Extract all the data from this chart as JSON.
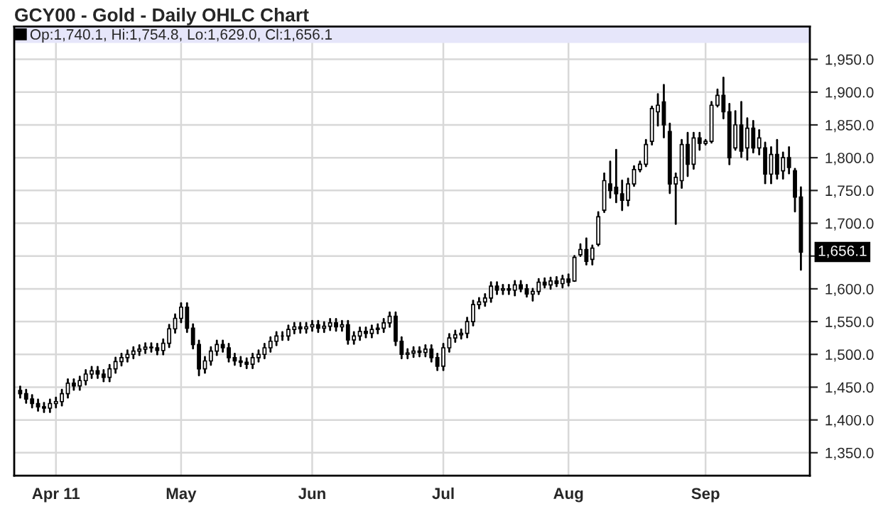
{
  "chart_data": {
    "type": "candlestick",
    "title": "GCY00 - Gold - Daily OHLC Chart",
    "categories": [
      null,
      null,
      null,
      null,
      null,
      null,
      "Apr 11",
      null,
      null,
      null,
      null,
      null,
      null,
      null,
      null,
      null,
      null,
      null,
      null,
      null,
      null,
      null,
      null,
      null,
      null,
      null,
      null,
      "May",
      null,
      null,
      null,
      null,
      null,
      null,
      null,
      null,
      null,
      null,
      null,
      null,
      null,
      null,
      null,
      null,
      null,
      null,
      null,
      null,
      null,
      "Jun",
      null,
      null,
      null,
      null,
      null,
      null,
      null,
      null,
      null,
      null,
      null,
      null,
      null,
      null,
      null,
      null,
      null,
      null,
      null,
      null,
      null,
      "Jul",
      null,
      null,
      null,
      null,
      null,
      null,
      null,
      null,
      null,
      null,
      null,
      null,
      null,
      null,
      null,
      null,
      null,
      null,
      null,
      null,
      "Aug",
      null,
      null,
      null,
      null,
      null,
      null,
      null,
      null,
      null,
      null,
      null,
      null,
      null,
      null,
      null,
      null,
      null,
      null,
      null,
      null,
      null,
      null,
      "Sep",
      null,
      null,
      null,
      null,
      null,
      null,
      null,
      null,
      null,
      null,
      null,
      null,
      null,
      null,
      null,
      null
    ],
    "series": [
      {
        "name": "Op:1,740.1, Hi:1,754.8, Lo:1,629.0, Cl:1,656.1",
        "color": "#000000",
        "ohlc": [
          [
            1445,
            1451,
            1434,
            1440
          ],
          [
            1440,
            1446,
            1426,
            1432
          ],
          [
            1432,
            1438,
            1419,
            1425
          ],
          [
            1425,
            1431,
            1414,
            1420
          ],
          [
            1420,
            1426,
            1412,
            1418
          ],
          [
            1418,
            1431,
            1412,
            1425
          ],
          [
            1425,
            1434,
            1419,
            1428
          ],
          [
            1428,
            1446,
            1422,
            1440
          ],
          [
            1440,
            1462,
            1434,
            1456
          ],
          [
            1456,
            1462,
            1446,
            1452
          ],
          [
            1452,
            1466,
            1446,
            1460
          ],
          [
            1460,
            1476,
            1454,
            1470
          ],
          [
            1470,
            1481,
            1464,
            1475
          ],
          [
            1475,
            1481,
            1464,
            1470
          ],
          [
            1470,
            1476,
            1459,
            1465
          ],
          [
            1465,
            1484,
            1459,
            1478
          ],
          [
            1478,
            1495,
            1472,
            1489
          ],
          [
            1489,
            1501,
            1483,
            1495
          ],
          [
            1495,
            1506,
            1489,
            1500
          ],
          [
            1500,
            1511,
            1494,
            1505
          ],
          [
            1505,
            1514,
            1499,
            1508
          ],
          [
            1508,
            1517,
            1502,
            1511
          ],
          [
            1511,
            1517,
            1504,
            1510
          ],
          [
            1510,
            1516,
            1500,
            1506
          ],
          [
            1506,
            1523,
            1500,
            1517
          ],
          [
            1517,
            1545,
            1511,
            1539
          ],
          [
            1539,
            1561,
            1533,
            1555
          ],
          [
            1555,
            1578,
            1549,
            1572
          ],
          [
            1572,
            1578,
            1534,
            1540
          ],
          [
            1540,
            1546,
            1509,
            1515
          ],
          [
            1515,
            1521,
            1468,
            1478
          ],
          [
            1478,
            1496,
            1472,
            1490
          ],
          [
            1490,
            1511,
            1484,
            1505
          ],
          [
            1505,
            1521,
            1499,
            1515
          ],
          [
            1515,
            1521,
            1504,
            1510
          ],
          [
            1510,
            1516,
            1489,
            1495
          ],
          [
            1495,
            1501,
            1484,
            1490
          ],
          [
            1490,
            1496,
            1482,
            1488
          ],
          [
            1488,
            1494,
            1479,
            1485
          ],
          [
            1485,
            1501,
            1479,
            1495
          ],
          [
            1495,
            1506,
            1489,
            1500
          ],
          [
            1500,
            1516,
            1494,
            1510
          ],
          [
            1510,
            1526,
            1504,
            1520
          ],
          [
            1520,
            1534,
            1514,
            1528
          ],
          [
            1528,
            1534,
            1522,
            1528
          ],
          [
            1528,
            1544,
            1522,
            1538
          ],
          [
            1538,
            1548,
            1532,
            1542
          ],
          [
            1542,
            1548,
            1533,
            1539
          ],
          [
            1539,
            1548,
            1533,
            1542
          ],
          [
            1542,
            1551,
            1536,
            1545
          ],
          [
            1545,
            1551,
            1534,
            1540
          ],
          [
            1540,
            1549,
            1534,
            1543
          ],
          [
            1543,
            1554,
            1537,
            1548
          ],
          [
            1548,
            1554,
            1536,
            1542
          ],
          [
            1542,
            1551,
            1536,
            1545
          ],
          [
            1545,
            1551,
            1516,
            1522
          ],
          [
            1522,
            1534,
            1516,
            1528
          ],
          [
            1528,
            1541,
            1522,
            1535
          ],
          [
            1535,
            1541,
            1526,
            1532
          ],
          [
            1532,
            1544,
            1526,
            1538
          ],
          [
            1538,
            1546,
            1532,
            1540
          ],
          [
            1540,
            1554,
            1534,
            1548
          ],
          [
            1548,
            1564,
            1542,
            1558
          ],
          [
            1558,
            1564,
            1514,
            1520
          ],
          [
            1520,
            1526,
            1494,
            1500
          ],
          [
            1500,
            1508,
            1494,
            1502
          ],
          [
            1502,
            1511,
            1496,
            1505
          ],
          [
            1505,
            1511,
            1497,
            1503
          ],
          [
            1503,
            1514,
            1497,
            1508
          ],
          [
            1508,
            1514,
            1489,
            1495
          ],
          [
            1495,
            1501,
            1476,
            1482
          ],
          [
            1482,
            1516,
            1476,
            1510
          ],
          [
            1510,
            1531,
            1504,
            1525
          ],
          [
            1525,
            1536,
            1519,
            1530
          ],
          [
            1530,
            1538,
            1524,
            1532
          ],
          [
            1532,
            1556,
            1526,
            1550
          ],
          [
            1550,
            1582,
            1544,
            1576
          ],
          [
            1576,
            1586,
            1570,
            1580
          ],
          [
            1580,
            1592,
            1574,
            1586
          ],
          [
            1586,
            1610,
            1580,
            1604
          ],
          [
            1604,
            1610,
            1592,
            1598
          ],
          [
            1598,
            1606,
            1592,
            1600
          ],
          [
            1600,
            1606,
            1592,
            1598
          ],
          [
            1598,
            1612,
            1590,
            1606
          ],
          [
            1606,
            1612,
            1596,
            1600
          ],
          [
            1600,
            1606,
            1588,
            1592
          ],
          [
            1592,
            1600,
            1582,
            1596
          ],
          [
            1596,
            1615,
            1592,
            1610
          ],
          [
            1610,
            1616,
            1602,
            1606
          ],
          [
            1606,
            1617,
            1600,
            1612
          ],
          [
            1612,
            1618,
            1604,
            1608
          ],
          [
            1608,
            1620,
            1602,
            1615
          ],
          [
            1615,
            1622,
            1605,
            1610
          ],
          [
            1612,
            1650,
            1612,
            1648
          ],
          [
            1652,
            1668,
            1650,
            1660
          ],
          [
            1660,
            1677,
            1637,
            1642
          ],
          [
            1645,
            1666,
            1637,
            1662
          ],
          [
            1668,
            1717,
            1666,
            1710
          ],
          [
            1720,
            1776,
            1717,
            1765
          ],
          [
            1760,
            1794,
            1739,
            1750
          ],
          [
            1755,
            1812,
            1732,
            1745
          ],
          [
            1745,
            1765,
            1720,
            1735
          ],
          [
            1735,
            1768,
            1727,
            1760
          ],
          [
            1760,
            1787,
            1757,
            1782
          ],
          [
            1782,
            1794,
            1779,
            1790
          ],
          [
            1790,
            1827,
            1787,
            1820
          ],
          [
            1825,
            1878,
            1820,
            1875
          ],
          [
            1870,
            1897,
            1849,
            1880
          ],
          [
            1885,
            1911,
            1831,
            1850
          ],
          [
            1840,
            1852,
            1746,
            1760
          ],
          [
            1760,
            1776,
            1699,
            1770
          ],
          [
            1765,
            1827,
            1754,
            1820
          ],
          [
            1820,
            1838,
            1772,
            1790
          ],
          [
            1790,
            1838,
            1783,
            1830
          ],
          [
            1830,
            1838,
            1812,
            1822
          ],
          [
            1822,
            1827,
            1820,
            1825
          ],
          [
            1825,
            1885,
            1823,
            1880
          ],
          [
            1880,
            1904,
            1878,
            1895
          ],
          [
            1895,
            1922,
            1860,
            1870
          ],
          [
            1870,
            1882,
            1790,
            1800
          ],
          [
            1815,
            1871,
            1812,
            1850
          ],
          [
            1850,
            1885,
            1801,
            1810
          ],
          [
            1815,
            1860,
            1797,
            1845
          ],
          [
            1845,
            1856,
            1808,
            1815
          ],
          [
            1815,
            1842,
            1805,
            1830
          ],
          [
            1815,
            1823,
            1761,
            1775
          ],
          [
            1775,
            1816,
            1761,
            1805
          ],
          [
            1805,
            1827,
            1768,
            1775
          ],
          [
            1780,
            1808,
            1768,
            1800
          ],
          [
            1800,
            1816,
            1776,
            1785
          ],
          [
            1780,
            1783,
            1718,
            1740
          ],
          [
            1740.1,
            1754.8,
            1629.0,
            1656.1
          ]
        ]
      }
    ],
    "ylim": [
      1315,
      2000
    ],
    "yticks": [
      {
        "value": 1350,
        "label": "1,350.0"
      },
      {
        "value": 1400,
        "label": "1,400.0"
      },
      {
        "value": 1450,
        "label": "1,450.0"
      },
      {
        "value": 1500,
        "label": "1,500.0"
      },
      {
        "value": 1550,
        "label": "1,550.0"
      },
      {
        "value": 1600,
        "label": "1,600.0"
      },
      {
        "value": 1650,
        "label": null
      },
      {
        "value": 1700,
        "label": "1,700.0"
      },
      {
        "value": 1750,
        "label": "1,750.0"
      },
      {
        "value": 1800,
        "label": "1,800.0"
      },
      {
        "value": 1850,
        "label": "1,850.0"
      },
      {
        "value": 1900,
        "label": "1,900.0"
      },
      {
        "value": 1950,
        "label": "1,950.0"
      }
    ],
    "bands": [
      {
        "axis": "y",
        "from": 1975,
        "to": 2000,
        "color": "#e6e6fa"
      }
    ],
    "annotations": [
      "1,656.1"
    ],
    "grid": true,
    "legend": "top left"
  }
}
